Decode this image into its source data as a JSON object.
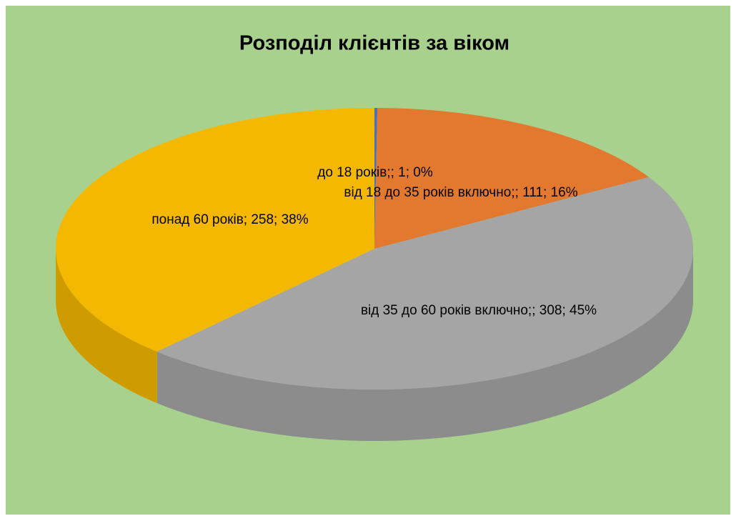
{
  "chart_data": {
    "type": "pie",
    "title": "Розподіл клієнтів за віком",
    "categories": [
      "до 18 років;",
      "від 18 до 35 років включно;",
      "від 35 до 60 років включно;",
      "понад 60 років"
    ],
    "values": [
      1,
      111,
      308,
      258
    ],
    "value_labels": [
      "до 18 років;; 1; 0%",
      "від 18 до 35 років включно;; 111; 16%",
      "від 35 до 60 років включно;; 308; 45%",
      "понад 60 років; 258; 38%"
    ],
    "colors": [
      "#4472c4",
      "#e2792f",
      "#a5a5a5",
      "#f4b800"
    ]
  }
}
